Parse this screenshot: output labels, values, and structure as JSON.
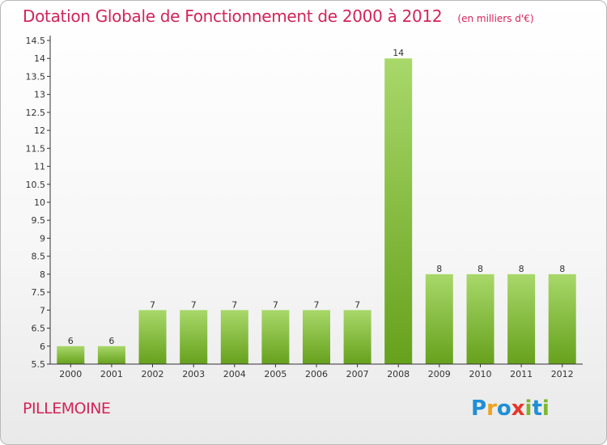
{
  "title": "Dotation Globale de Fonctionnement de 2000 à 2012",
  "unit_note": "(en milliers d'€)",
  "commune": "PILLEMOINE",
  "logo": {
    "text": "Proxiti",
    "letters": [
      {
        "ch": "P",
        "color": "#1f8fd6"
      },
      {
        "ch": "r",
        "color": "#f0a21a"
      },
      {
        "ch": "o",
        "color": "#1f8fd6"
      },
      {
        "ch": "x",
        "color": "#e8352b"
      },
      {
        "ch": "i",
        "color": "#7cb82f"
      },
      {
        "ch": "t",
        "color": "#1f8fd6"
      },
      {
        "ch": "i",
        "color": "#7cb82f"
      }
    ]
  },
  "colors": {
    "title": "#d2245a",
    "bar_top": "#a8d86a",
    "bar_bottom": "#66a11c",
    "axis": "#333333",
    "text": "#333333"
  },
  "chart_data": {
    "type": "bar",
    "categories": [
      "2000",
      "2001",
      "2002",
      "2003",
      "2004",
      "2005",
      "2006",
      "2007",
      "2008",
      "2009",
      "2010",
      "2011",
      "2012"
    ],
    "values": [
      6,
      6,
      7,
      7,
      7,
      7,
      7,
      7,
      14,
      8,
      8,
      8,
      8
    ],
    "data_labels": [
      "6",
      "6",
      "7",
      "7",
      "7",
      "7",
      "7",
      "7",
      "14",
      "8",
      "8",
      "8",
      "8"
    ],
    "ylim": [
      5.5,
      14.5
    ],
    "yticks": [
      5.5,
      6,
      6.5,
      7,
      7.5,
      8,
      8.5,
      9,
      9.5,
      10,
      10.5,
      11,
      11.5,
      12,
      12.5,
      13,
      13.5,
      14,
      14.5
    ],
    "ytick_labels": [
      "5.5",
      "6",
      "6.5",
      "7",
      "7.5",
      "8",
      "8.5",
      "9",
      "9.5",
      "10",
      "10.5",
      "11",
      "11.5",
      "12",
      "12.5",
      "13",
      "13.5",
      "14",
      "14.5"
    ],
    "grid": false,
    "legend": "none"
  }
}
